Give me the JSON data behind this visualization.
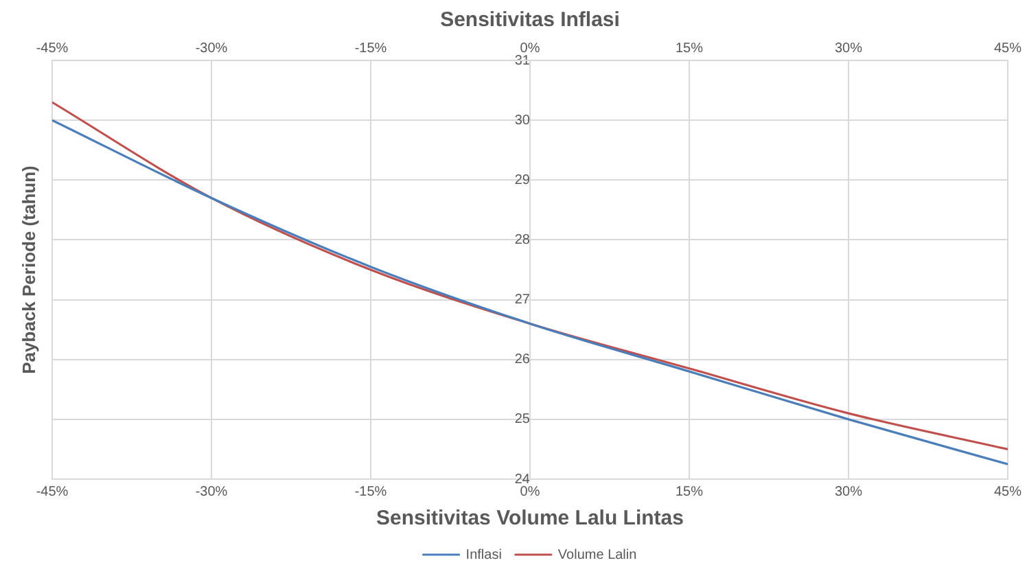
{
  "chart_data": {
    "type": "line",
    "xlabel": "Sensitivitas Volume Lalu Lintas",
    "x2label": "Sensitivitas Inflasi",
    "ylabel": "Payback Periode (tahun)",
    "xlim": [
      -45,
      45
    ],
    "xticks": [
      {
        "value": -45,
        "label": "-45%"
      },
      {
        "value": -30,
        "label": "-30%"
      },
      {
        "value": -15,
        "label": "-15%"
      },
      {
        "value": 0,
        "label": "0%"
      },
      {
        "value": 15,
        "label": "15%"
      },
      {
        "value": 30,
        "label": "30%"
      },
      {
        "value": 45,
        "label": "45%"
      }
    ],
    "x2lim": [
      -45,
      45
    ],
    "x2ticks": [
      {
        "value": -45,
        "label": "-45%"
      },
      {
        "value": -30,
        "label": "-30%"
      },
      {
        "value": -15,
        "label": "-15%"
      },
      {
        "value": 0,
        "label": "0%"
      },
      {
        "value": 15,
        "label": "15%"
      },
      {
        "value": 30,
        "label": "30%"
      },
      {
        "value": 45,
        "label": "45%"
      }
    ],
    "ylim": [
      24,
      31
    ],
    "yticks": [
      24,
      25,
      26,
      27,
      28,
      29,
      30,
      31
    ],
    "grid": true,
    "legend": "bottom",
    "marker": "none",
    "series": [
      {
        "name": "Inflasi",
        "color": "#4a7ebb",
        "x": [
          -45,
          -30,
          -15,
          0,
          15,
          30,
          45
        ],
        "values": [
          30.0,
          28.7,
          27.55,
          26.6,
          25.8,
          25.0,
          24.25
        ]
      },
      {
        "name": "Volume Lalin",
        "color": "#c0504d",
        "x": [
          -45,
          -30,
          -15,
          0,
          15,
          30,
          45
        ],
        "values": [
          30.3,
          28.7,
          27.5,
          26.6,
          25.85,
          25.1,
          24.5
        ]
      }
    ]
  }
}
